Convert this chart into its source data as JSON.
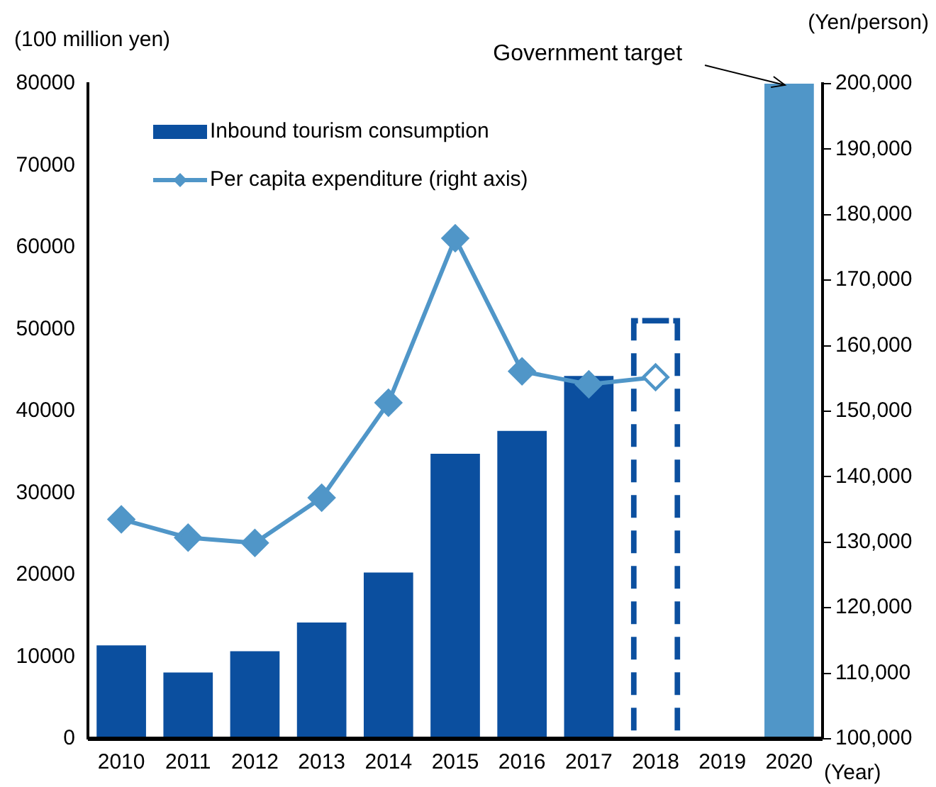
{
  "chart_data": {
    "type": "bar",
    "categories": [
      "2010",
      "2011",
      "2012",
      "2013",
      "2014",
      "2015",
      "2016",
      "2017",
      "2018",
      "2019",
      "2020"
    ],
    "ylabel": "(100 million yen)",
    "y2label": "(Yen/person)",
    "xlabel": "(Year)",
    "ylim": [
      0,
      80000
    ],
    "yticks": [
      0,
      10000,
      20000,
      30000,
      40000,
      50000,
      60000,
      70000,
      80000
    ],
    "y2lim": [
      100000,
      200000
    ],
    "y2ticks": [
      {
        "value": 100000,
        "label": "100,000"
      },
      {
        "value": 110000,
        "label": "110,000"
      },
      {
        "value": 120000,
        "label": "120,000"
      },
      {
        "value": 130000,
        "label": "130,000"
      },
      {
        "value": 140000,
        "label": "140,000"
      },
      {
        "value": 150000,
        "label": "150,000"
      },
      {
        "value": 160000,
        "label": "160,000"
      },
      {
        "value": 170000,
        "label": "170,000"
      },
      {
        "value": 180000,
        "label": "180,000"
      },
      {
        "value": 190000,
        "label": "190,000"
      },
      {
        "value": 200000,
        "label": "200,000"
      }
    ],
    "series": [
      {
        "type": "bar",
        "name": "Inbound tourism consumption",
        "color": "#0b4f9f",
        "values": [
          11400,
          8100,
          10700,
          14200,
          20300,
          34800,
          37600,
          44300,
          null,
          null,
          null
        ]
      },
      {
        "type": "bar",
        "color": "#0b4f9f",
        "line_style": "dashed",
        "values": [
          null,
          null,
          null,
          null,
          null,
          null,
          null,
          null,
          51400,
          null,
          null
        ]
      },
      {
        "type": "bar",
        "color": "#5096c8",
        "values": [
          null,
          null,
          null,
          null,
          null,
          null,
          null,
          null,
          null,
          null,
          80000
        ]
      },
      {
        "type": "line",
        "axis": "y2",
        "name": "Per capita expenditure (right axis)",
        "color": "#5096c8",
        "marker": "diamond",
        "values": [
          133500,
          130700,
          129900,
          136800,
          151300,
          176400,
          156100,
          154100,
          155200,
          null,
          null
        ]
      },
      {
        "type": "scatter",
        "axis": "y2",
        "color": "#5096c8",
        "marker": "diamond",
        "values": [
          null,
          null,
          null,
          null,
          null,
          null,
          null,
          null,
          155200,
          null,
          null
        ]
      }
    ],
    "annotations": [
      {
        "text": "Government target",
        "x": "2020",
        "y": 80000
      }
    ],
    "legend": "top left",
    "grid": false
  }
}
